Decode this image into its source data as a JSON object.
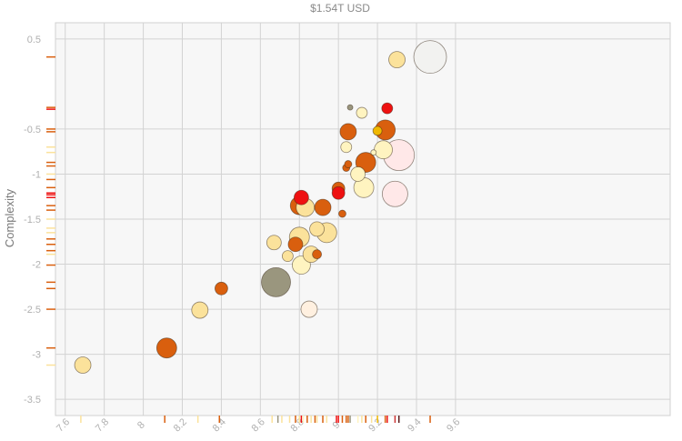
{
  "chart_data": {
    "type": "scatter",
    "title": "$1.54T USD",
    "ylabel": "Complexity",
    "xlabel": "",
    "xlim": [
      7.55,
      10.7
    ],
    "ylim": [
      -3.68,
      0.68
    ],
    "x_ticks": [
      7.6,
      7.8,
      8.0,
      8.2,
      8.4,
      8.6,
      8.8,
      9.0,
      9.2,
      9.4,
      9.6
    ],
    "x_tick_labels": [
      "7.6",
      "7.8",
      "8",
      "8.2",
      "8.4",
      "8.6",
      "8.8",
      "9",
      "9.2",
      "9.4",
      "9.6"
    ],
    "y_ticks": [
      0.5,
      -0.5,
      -1,
      -1.5,
      -2,
      -2.5,
      -3,
      -3.5
    ],
    "y_tick_labels": [
      "0.5",
      "-0.5",
      "-1",
      "-1.5",
      "-2",
      "-2.5",
      "-3",
      "-3.5"
    ],
    "grid": true,
    "points": [
      {
        "x": 7.69,
        "y": -3.12,
        "size": 9,
        "color": "#fbe29b"
      },
      {
        "x": 8.12,
        "y": -2.93,
        "size": 11,
        "color": "#d95f0e"
      },
      {
        "x": 8.29,
        "y": -2.51,
        "size": 9,
        "color": "#fbe29b"
      },
      {
        "x": 8.4,
        "y": -2.27,
        "size": 7,
        "color": "#d95f0e"
      },
      {
        "x": 8.68,
        "y": -2.2,
        "size": 16,
        "color": "#9a967e"
      },
      {
        "x": 8.85,
        "y": -2.5,
        "size": 9,
        "color": "#fff0e0"
      },
      {
        "x": 8.81,
        "y": -2.01,
        "size": 10,
        "color": "#fff4c0"
      },
      {
        "x": 8.67,
        "y": -1.76,
        "size": 8,
        "color": "#fbe29b"
      },
      {
        "x": 8.74,
        "y": -1.91,
        "size": 6,
        "color": "#fbe29b"
      },
      {
        "x": 8.78,
        "y": -1.78,
        "size": 8,
        "color": "#d95f0e"
      },
      {
        "x": 8.8,
        "y": -1.7,
        "size": 11,
        "color": "#fbe29b"
      },
      {
        "x": 8.86,
        "y": -1.89,
        "size": 9,
        "color": "#fbe29b"
      },
      {
        "x": 8.89,
        "y": -1.89,
        "size": 5,
        "color": "#d95f0e"
      },
      {
        "x": 8.89,
        "y": -1.61,
        "size": 8,
        "color": "#fbe29b"
      },
      {
        "x": 8.94,
        "y": -1.65,
        "size": 11,
        "color": "#fbe29b"
      },
      {
        "x": 8.8,
        "y": -1.35,
        "size": 10,
        "color": "#d95f0e"
      },
      {
        "x": 8.83,
        "y": -1.37,
        "size": 10,
        "color": "#fbe29b"
      },
      {
        "x": 8.81,
        "y": -1.26,
        "size": 8,
        "color": "#ee1111"
      },
      {
        "x": 8.92,
        "y": -1.37,
        "size": 9,
        "color": "#d95f0e"
      },
      {
        "x": 9.02,
        "y": -1.44,
        "size": 4,
        "color": "#d95f0e"
      },
      {
        "x": 9.0,
        "y": -1.16,
        "size": 7,
        "color": "#d95f0e"
      },
      {
        "x": 9.0,
        "y": -1.21,
        "size": 7,
        "color": "#ee1111"
      },
      {
        "x": 9.1,
        "y": -1.0,
        "size": 8,
        "color": "#fff4c0"
      },
      {
        "x": 9.13,
        "y": -1.15,
        "size": 11,
        "color": "#fff4c0"
      },
      {
        "x": 9.04,
        "y": -0.93,
        "size": 4,
        "color": "#d95f0e"
      },
      {
        "x": 9.05,
        "y": -0.89,
        "size": 4,
        "color": "#d95f0e"
      },
      {
        "x": 9.04,
        "y": -0.7,
        "size": 6,
        "color": "#fff4c0"
      },
      {
        "x": 9.05,
        "y": -0.53,
        "size": 9,
        "color": "#d95f0e"
      },
      {
        "x": 9.06,
        "y": -0.26,
        "size": 3,
        "color": "#9a967e"
      },
      {
        "x": 9.12,
        "y": -0.32,
        "size": 6,
        "color": "#fff4c0"
      },
      {
        "x": 9.14,
        "y": -0.87,
        "size": 11,
        "color": "#d95f0e"
      },
      {
        "x": 9.18,
        "y": -0.76,
        "size": 3,
        "color": "#fff4c0"
      },
      {
        "x": 9.2,
        "y": -0.52,
        "size": 5,
        "color": "#f0b800"
      },
      {
        "x": 9.23,
        "y": -0.73,
        "size": 10,
        "color": "#fff4c0"
      },
      {
        "x": 9.24,
        "y": -0.51,
        "size": 11,
        "color": "#d95f0e"
      },
      {
        "x": 9.25,
        "y": -0.27,
        "size": 6,
        "color": "#ee1111"
      },
      {
        "x": 9.29,
        "y": -1.22,
        "size": 14,
        "color": "#ffe8e8"
      },
      {
        "x": 9.31,
        "y": -0.79,
        "size": 17,
        "color": "#ffe8e8"
      },
      {
        "x": 9.3,
        "y": 0.27,
        "size": 9,
        "color": "#fbe29b"
      },
      {
        "x": 9.47,
        "y": 0.3,
        "size": 18,
        "color": "#f2f2f0"
      }
    ],
    "rug_x": [
      {
        "x": 7.68,
        "color": "#fbe29b"
      },
      {
        "x": 8.11,
        "color": "#d95f0e"
      },
      {
        "x": 8.28,
        "color": "#fbe29b"
      },
      {
        "x": 8.39,
        "color": "#d95f0e"
      },
      {
        "x": 8.66,
        "color": "#fbe29b"
      },
      {
        "x": 8.69,
        "color": "#9a967e"
      },
      {
        "x": 8.71,
        "color": "#fbe29b"
      },
      {
        "x": 8.75,
        "color": "#fbe29b"
      },
      {
        "x": 8.78,
        "color": "#d95f0e"
      },
      {
        "x": 8.8,
        "color": "#fbe29b"
      },
      {
        "x": 8.81,
        "color": "#ee1111"
      },
      {
        "x": 8.82,
        "color": "#fff4c0"
      },
      {
        "x": 8.84,
        "color": "#d95f0e"
      },
      {
        "x": 8.86,
        "color": "#fbe29b"
      },
      {
        "x": 8.88,
        "color": "#d95f0e"
      },
      {
        "x": 8.89,
        "color": "#fbe29b"
      },
      {
        "x": 8.92,
        "color": "#d95f0e"
      },
      {
        "x": 8.94,
        "color": "#fbe29b"
      },
      {
        "x": 8.99,
        "color": "#ee1111"
      },
      {
        "x": 9.0,
        "color": "#ee1111"
      },
      {
        "x": 9.02,
        "color": "#d95f0e"
      },
      {
        "x": 9.04,
        "color": "#d95f0e"
      },
      {
        "x": 9.05,
        "color": "#d95f0e"
      },
      {
        "x": 9.06,
        "color": "#9a967e"
      },
      {
        "x": 9.1,
        "color": "#fff4c0"
      },
      {
        "x": 9.12,
        "color": "#fbe29b"
      },
      {
        "x": 9.14,
        "color": "#d95f0e"
      },
      {
        "x": 9.17,
        "color": "#fbe29b"
      },
      {
        "x": 9.2,
        "color": "#f0b800"
      },
      {
        "x": 9.24,
        "color": "#d95f0e"
      },
      {
        "x": 9.25,
        "color": "#ee1111"
      },
      {
        "x": 9.29,
        "color": "#cc3333"
      },
      {
        "x": 9.31,
        "color": "#5a1a1a"
      },
      {
        "x": 9.47,
        "color": "#d95f0e"
      }
    ],
    "rug_y": [
      {
        "y": 0.3,
        "color": "#d95f0e"
      },
      {
        "y": -0.26,
        "color": "#d95f0e"
      },
      {
        "y": -0.28,
        "color": "#ee1111"
      },
      {
        "y": -0.5,
        "color": "#d95f0e"
      },
      {
        "y": -0.53,
        "color": "#d95f0e"
      },
      {
        "y": -0.7,
        "color": "#fbe29b"
      },
      {
        "y": -0.76,
        "color": "#fbe29b"
      },
      {
        "y": -0.87,
        "color": "#d95f0e"
      },
      {
        "y": -0.91,
        "color": "#d95f0e"
      },
      {
        "y": -1.0,
        "color": "#fbe29b"
      },
      {
        "y": -1.06,
        "color": "#d95f0e"
      },
      {
        "y": -1.15,
        "color": "#d95f0e"
      },
      {
        "y": -1.21,
        "color": "#ee1111"
      },
      {
        "y": -1.23,
        "color": "#ee1111"
      },
      {
        "y": -1.26,
        "color": "#ee1111"
      },
      {
        "y": -1.35,
        "color": "#d95f0e"
      },
      {
        "y": -1.4,
        "color": "#d95f0e"
      },
      {
        "y": -1.5,
        "color": "#fbe29b"
      },
      {
        "y": -1.6,
        "color": "#fbe29b"
      },
      {
        "y": -1.65,
        "color": "#fbe29b"
      },
      {
        "y": -1.72,
        "color": "#d95f0e"
      },
      {
        "y": -1.78,
        "color": "#d95f0e"
      },
      {
        "y": -1.85,
        "color": "#d95f0e"
      },
      {
        "y": -1.89,
        "color": "#fbe29b"
      },
      {
        "y": -2.01,
        "color": "#d95f0e"
      },
      {
        "y": -2.2,
        "color": "#d95f0e"
      },
      {
        "y": -2.27,
        "color": "#d95f0e"
      },
      {
        "y": -2.5,
        "color": "#d95f0e"
      },
      {
        "y": -2.93,
        "color": "#d95f0e"
      },
      {
        "y": -3.12,
        "color": "#fbe29b"
      }
    ]
  }
}
